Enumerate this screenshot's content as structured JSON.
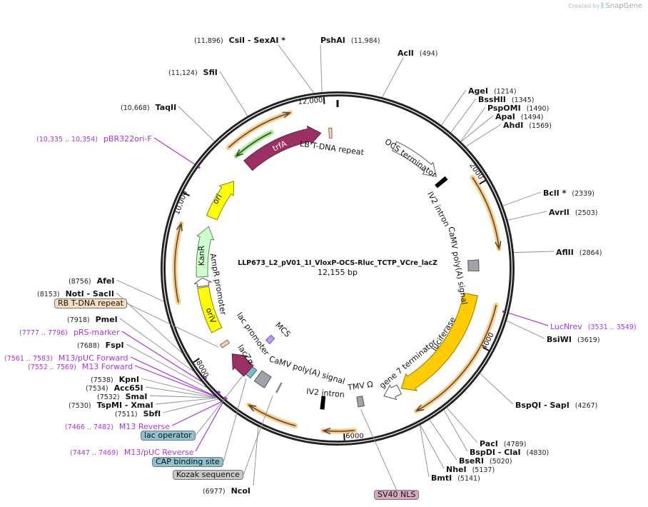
{
  "branding": {
    "prefix": "Created by",
    "name": "SnapGene"
  },
  "map": {
    "name": "LLP673_L2_pV01_1I_VloxP-OCS-Rluc_TCTP_VCre_lacZ",
    "length": "12,155 bp"
  },
  "ticks": [
    "2000",
    "4000",
    "6000",
    "8000",
    "10,000",
    "12,000"
  ],
  "features": [
    {
      "label": "trfA",
      "color": "#9B3163"
    },
    {
      "label": "LB T-DNA repeat",
      "color": "#F5D3B3"
    },
    {
      "label": "OCS terminator",
      "color": "#FFFFFF"
    },
    {
      "label": "IV2 intron",
      "color": "#000000"
    },
    {
      "label": "CaMV poly(A) signal",
      "color": "#A0A4AA"
    },
    {
      "label": "luciferase",
      "color": "#FFCC00"
    },
    {
      "label": "gene 7 terminator",
      "color": "#FFFFFF"
    },
    {
      "label": "TMV Ω",
      "color": "#A0A4AA"
    },
    {
      "label": "IV2 intron",
      "color": "#000000"
    },
    {
      "label": "CaMV poly(A) signal",
      "color": "#A0A4AA"
    },
    {
      "label": "lac promoter",
      "color": "#7BBBC6"
    },
    {
      "label": "lacZα",
      "color": "#9B3163"
    },
    {
      "label": "MCS",
      "color": "#B8A0F0"
    },
    {
      "label": "oriV",
      "color": "#FFFF00"
    },
    {
      "label": "AmpR promoter",
      "color": "#FFFFFF"
    },
    {
      "label": "KanR",
      "color": "#CCFFCC"
    },
    {
      "label": "ori",
      "color": "#FFFF00"
    }
  ],
  "sites": [
    {
      "name": "PshAI",
      "pos": "(11,984)",
      "kind": "enzyme"
    },
    {
      "name": "AclI",
      "pos": "(494)",
      "kind": "enzyme"
    },
    {
      "name": "AgeI",
      "pos": "(1214)",
      "kind": "enzyme"
    },
    {
      "name": "BssHII",
      "pos": "(1345)",
      "kind": "enzyme"
    },
    {
      "name": "PspOMI",
      "pos": "(1490)",
      "kind": "enzyme"
    },
    {
      "name": "ApaI",
      "pos": "(1494)",
      "kind": "enzyme"
    },
    {
      "name": "AhdI",
      "pos": "(1569)",
      "kind": "enzyme"
    },
    {
      "name": "BclI *",
      "pos": "(2339)",
      "kind": "enzyme"
    },
    {
      "name": "AvrII",
      "pos": "(2503)",
      "kind": "enzyme"
    },
    {
      "name": "AflII",
      "pos": "(2864)",
      "kind": "enzyme"
    },
    {
      "name": "LucNrev",
      "pos": "(3531 .. 3549)",
      "kind": "primer"
    },
    {
      "name": "BsiWI",
      "pos": "(3619)",
      "kind": "enzyme"
    },
    {
      "name": "BspQI  - SapI",
      "pos": "(4267)",
      "kind": "enzyme"
    },
    {
      "name": "PacI",
      "pos": "(4789)",
      "kind": "enzyme"
    },
    {
      "name": "BspDI  - ClaI",
      "pos": "(4830)",
      "kind": "enzyme"
    },
    {
      "name": "BseRI",
      "pos": "(5020)",
      "kind": "enzyme"
    },
    {
      "name": "NheI",
      "pos": "(5137)",
      "kind": "enzyme"
    },
    {
      "name": "BmtI",
      "pos": "(5141)",
      "kind": "enzyme"
    },
    {
      "name": "SV40 NLS",
      "kind": "box",
      "color": "#D9A7C4"
    },
    {
      "name": "NcoI",
      "pos": "(6977)",
      "kind": "enzyme"
    },
    {
      "name": "Kozak sequence",
      "kind": "box",
      "color": "#C8C8C8"
    },
    {
      "name": "CAP binding site",
      "kind": "box",
      "color": "#8DC3D0"
    },
    {
      "name": "M13/pUC Reverse",
      "pos": "(7447 .. 7469)",
      "kind": "primer"
    },
    {
      "name": "lac operator",
      "kind": "box",
      "color": "#8DC3D0"
    },
    {
      "name": "M13 Reverse",
      "pos": "(7466 .. 7482)",
      "kind": "primer"
    },
    {
      "name": "SbfI",
      "pos": "(7511)",
      "kind": "enzyme"
    },
    {
      "name": "TspMI  - XmaI",
      "pos": "(7530)",
      "kind": "enzyme"
    },
    {
      "name": "SmaI",
      "pos": "(7532)",
      "kind": "enzyme"
    },
    {
      "name": "Acc65I",
      "pos": "(7534)",
      "kind": "enzyme"
    },
    {
      "name": "KpnI",
      "pos": "(7538)",
      "kind": "enzyme"
    },
    {
      "name": "M13 Forward",
      "pos": "(7552 .. 7569)",
      "kind": "primer"
    },
    {
      "name": "M13/pUC Forward",
      "pos": "(7561 .. 7583)",
      "kind": "primer"
    },
    {
      "name": "FspI",
      "pos": "(7688)",
      "kind": "enzyme"
    },
    {
      "name": "pRS-marker",
      "pos": "(7777 .. 7796)",
      "kind": "primer"
    },
    {
      "name": "PmeI",
      "pos": "(7918)",
      "kind": "enzyme"
    },
    {
      "name": "RB T-DNA repeat",
      "kind": "box",
      "color": "#FADDBD"
    },
    {
      "name": "NotI  - SacII",
      "pos": "(8153)",
      "kind": "enzyme"
    },
    {
      "name": "AfeI",
      "pos": "(8756)",
      "kind": "enzyme"
    },
    {
      "name": "pBR322ori-F",
      "pos": "(10,335 .. 10,354)",
      "kind": "primer"
    },
    {
      "name": "TaqII",
      "pos": "(10,668)",
      "kind": "enzyme"
    },
    {
      "name": "SfiI",
      "pos": "(11,124)",
      "kind": "enzyme"
    },
    {
      "name": "CsiI  - SexAI *",
      "pos": "(11,896)",
      "kind": "enzyme"
    }
  ]
}
